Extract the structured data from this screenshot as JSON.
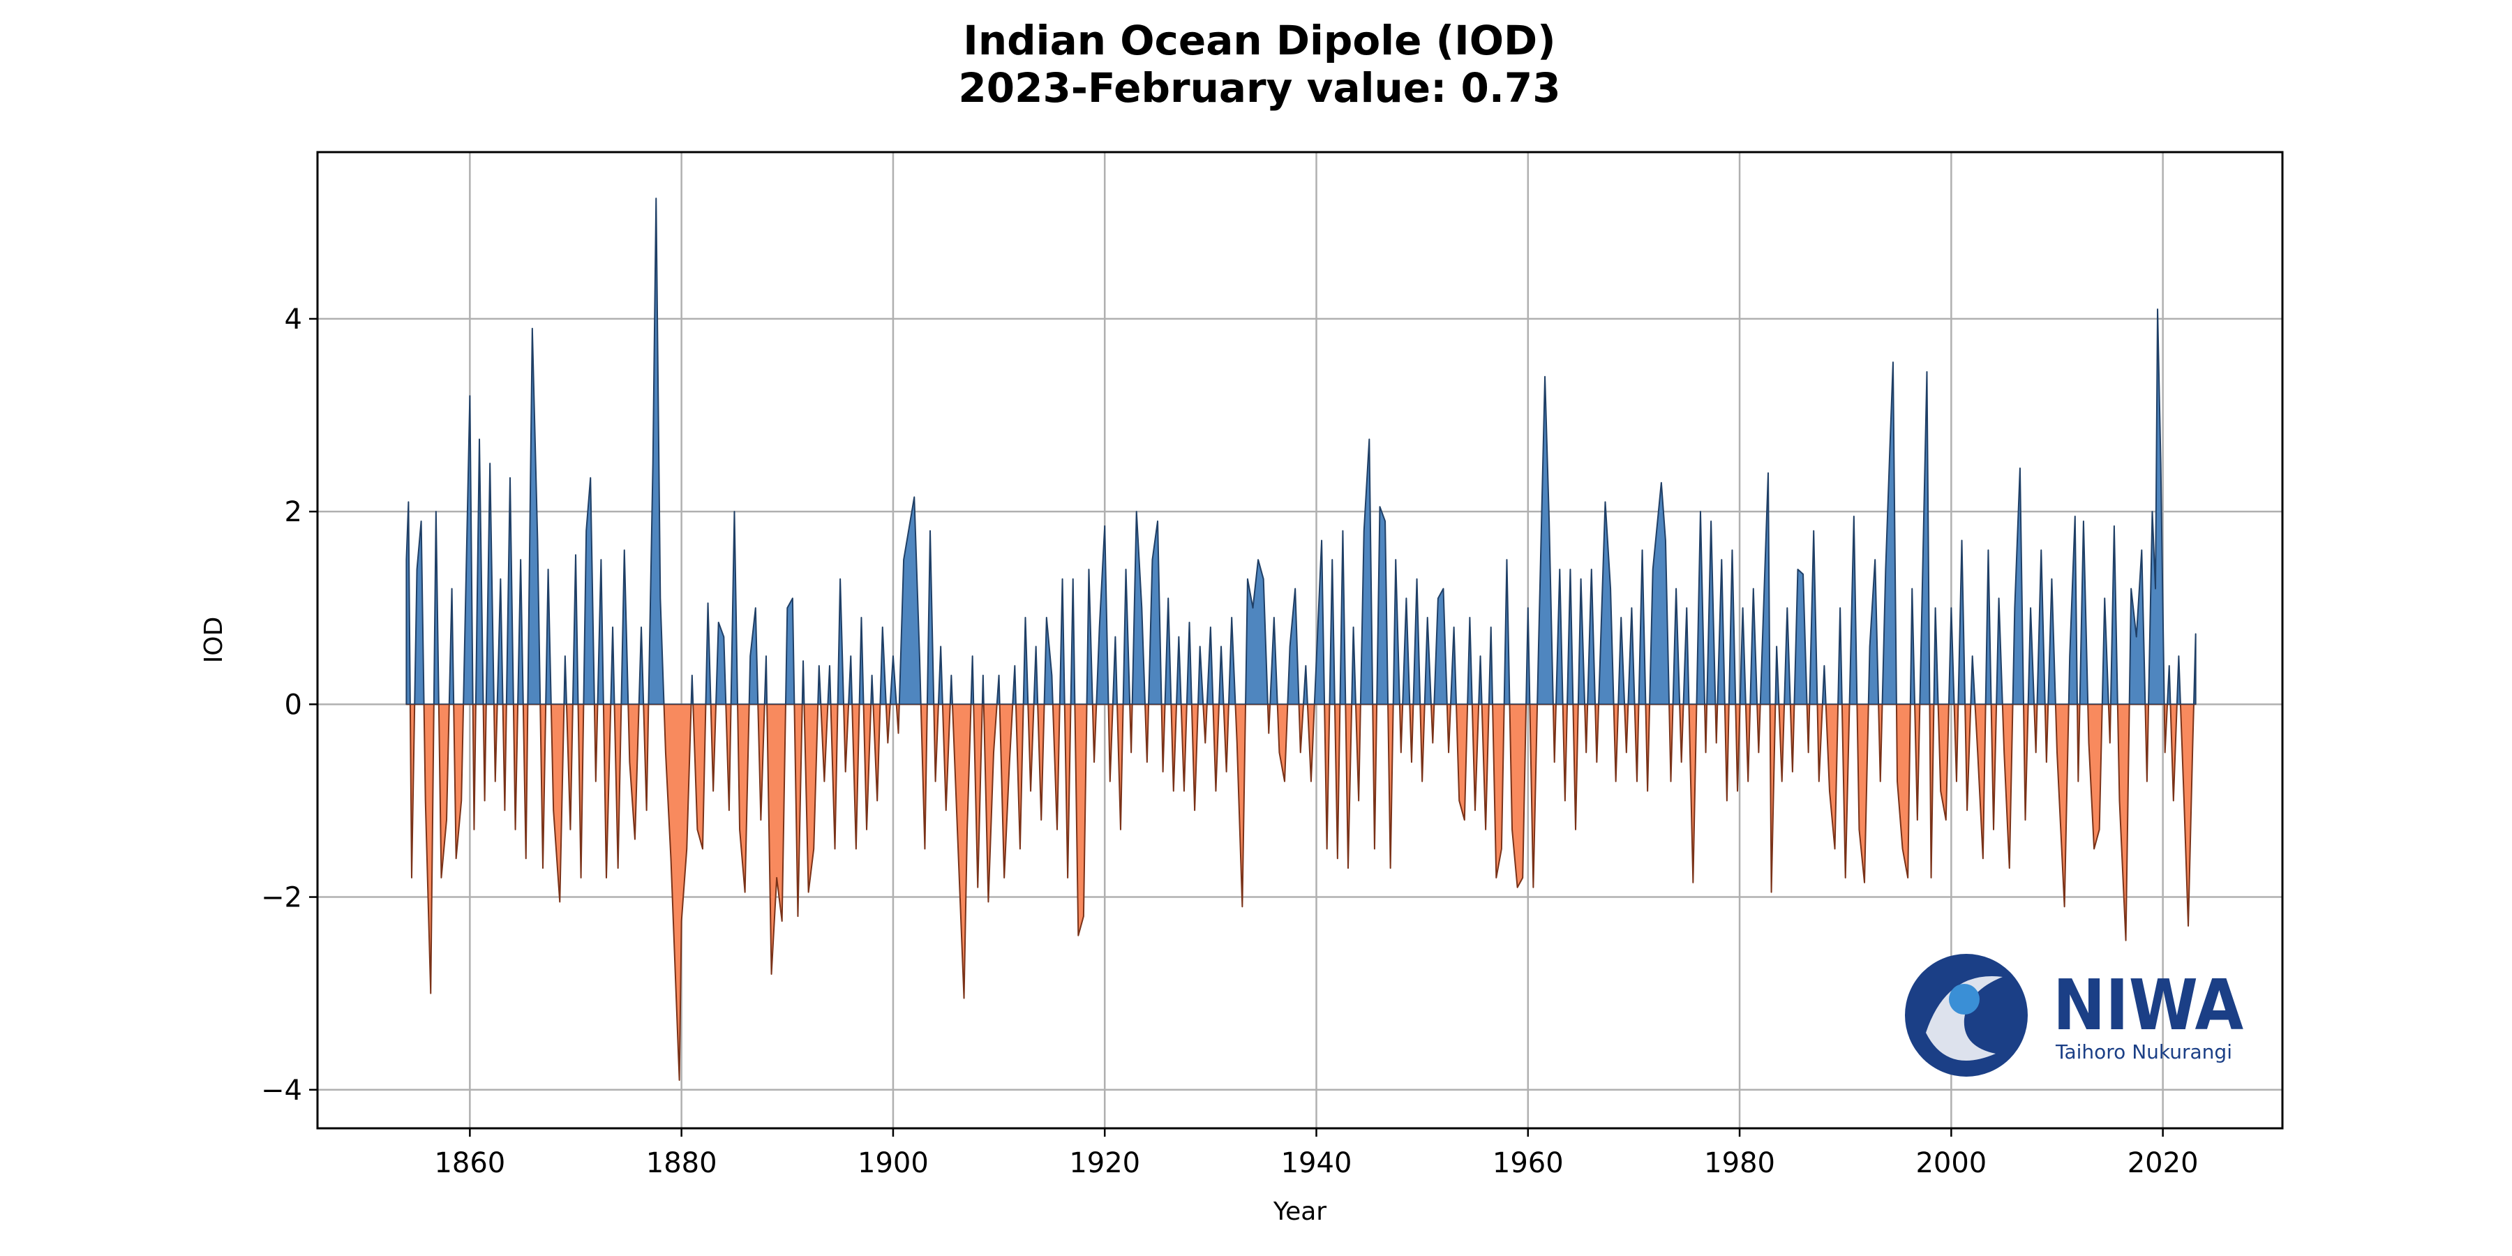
{
  "chart_data": {
    "type": "area",
    "title": "Indian Ocean Dipole (IOD)",
    "subtitle": "2023-February value: 0.73",
    "xlabel": "Year",
    "ylabel": "IOD",
    "positive_color": "#4f86bf",
    "positive_edge": "#1f3f66",
    "negative_color": "#f88a5e",
    "negative_edge": "#7a3218",
    "grid": true,
    "xlim": [
      1845.6,
      2031.3
    ],
    "ylim": [
      -4.4,
      5.73
    ],
    "xticks": [
      1860,
      1880,
      1900,
      1920,
      1940,
      1960,
      1980,
      2000,
      2020
    ],
    "yticks": [
      {
        "value": -4,
        "label": "−4"
      },
      {
        "value": -2,
        "label": "−2"
      },
      0,
      2,
      4
    ],
    "x": [
      1854.0,
      1854.2,
      1854.5,
      1855.0,
      1855.4,
      1855.8,
      1856.3,
      1856.8,
      1857.3,
      1857.8,
      1858.3,
      1858.7,
      1859.2,
      1860.0,
      1860.4,
      1860.9,
      1861.4,
      1861.9,
      1862.4,
      1862.9,
      1863.3,
      1863.8,
      1864.3,
      1864.8,
      1865.3,
      1865.9,
      1866.4,
      1866.9,
      1867.4,
      1867.9,
      1868.5,
      1869.0,
      1869.5,
      1870.0,
      1870.5,
      1871.0,
      1871.4,
      1871.9,
      1872.4,
      1872.9,
      1873.5,
      1874.0,
      1874.6,
      1875.1,
      1875.6,
      1876.2,
      1876.7,
      1877.3,
      1877.6,
      1878.0,
      1878.5,
      1879.0,
      1879.8,
      1880.0,
      1880.5,
      1881.0,
      1881.5,
      1882.0,
      1882.5,
      1883.0,
      1883.5,
      1884.0,
      1884.5,
      1885.0,
      1885.5,
      1886.0,
      1886.5,
      1887.0,
      1887.5,
      1888.0,
      1888.5,
      1889.0,
      1889.5,
      1890.0,
      1890.5,
      1891.0,
      1891.5,
      1892.0,
      1892.5,
      1893.0,
      1893.5,
      1894.0,
      1894.5,
      1895.0,
      1895.5,
      1896.0,
      1896.5,
      1897.0,
      1897.5,
      1898.0,
      1898.5,
      1899.0,
      1899.5,
      1900.0,
      1900.5,
      1901.0,
      1902.0,
      1902.5,
      1903.0,
      1903.5,
      1904.0,
      1904.5,
      1905.0,
      1905.5,
      1906.7,
      1907.0,
      1907.5,
      1908.0,
      1908.5,
      1909.0,
      1909.5,
      1910.0,
      1910.5,
      1911.0,
      1911.5,
      1912.0,
      1912.5,
      1913.0,
      1913.5,
      1914.0,
      1914.5,
      1915.0,
      1915.5,
      1916.0,
      1916.5,
      1917.0,
      1917.5,
      1918.0,
      1918.5,
      1919.0,
      1919.5,
      1920.0,
      1920.5,
      1921.0,
      1921.5,
      1922.0,
      1922.5,
      1923.0,
      1923.5,
      1924.0,
      1924.5,
      1925.0,
      1925.5,
      1926.0,
      1926.5,
      1927.0,
      1927.5,
      1928.0,
      1928.5,
      1929.0,
      1929.5,
      1930.0,
      1930.5,
      1931.0,
      1931.5,
      1932.0,
      1932.5,
      1933.0,
      1933.5,
      1934.0,
      1934.5,
      1935.0,
      1935.5,
      1936.0,
      1936.5,
      1937.0,
      1937.5,
      1938.0,
      1938.5,
      1939.0,
      1939.5,
      1940.5,
      1941.0,
      1941.5,
      1942.0,
      1942.5,
      1943.0,
      1943.5,
      1944.0,
      1944.5,
      1945.0,
      1945.5,
      1946.0,
      1946.5,
      1947.0,
      1947.5,
      1948.0,
      1948.5,
      1949.0,
      1949.5,
      1950.0,
      1950.5,
      1951.0,
      1951.5,
      1952.0,
      1952.5,
      1953.0,
      1953.5,
      1954.0,
      1954.5,
      1955.0,
      1955.5,
      1956.0,
      1956.5,
      1957.0,
      1957.5,
      1958.0,
      1958.5,
      1959.0,
      1959.5,
      1960.0,
      1960.5,
      1961.0,
      1961.6,
      1962.0,
      1962.5,
      1963.0,
      1963.5,
      1964.0,
      1964.5,
      1965.0,
      1965.5,
      1966.0,
      1966.5,
      1967.3,
      1967.8,
      1968.3,
      1968.8,
      1969.3,
      1969.8,
      1970.3,
      1970.8,
      1971.3,
      1971.8,
      1972.6,
      1973.0,
      1973.5,
      1974.0,
      1974.5,
      1975.0,
      1975.6,
      1976.3,
      1976.8,
      1977.3,
      1977.8,
      1978.3,
      1978.8,
      1979.3,
      1979.8,
      1980.3,
      1980.8,
      1981.3,
      1981.8,
      1982.7,
      1983.0,
      1983.5,
      1984.0,
      1984.5,
      1985.0,
      1985.5,
      1986.0,
      1986.5,
      1987.0,
      1987.5,
      1988.0,
      1988.5,
      1989.0,
      1989.5,
      1990.0,
      1990.8,
      1991.3,
      1991.8,
      1992.3,
      1992.8,
      1993.3,
      1993.8,
      1994.2,
      1994.5,
      1994.9,
      1995.4,
      1995.9,
      1996.3,
      1996.8,
      1997.7,
      1998.1,
      1998.5,
      1999.0,
      1999.5,
      2000.0,
      2000.5,
      2001.0,
      2001.5,
      2002.0,
      2002.5,
      2003.0,
      2003.5,
      2004.0,
      2004.5,
      2005.0,
      2005.5,
      2006.0,
      2006.5,
      2007.0,
      2007.5,
      2008.0,
      2008.5,
      2009.0,
      2009.5,
      2010.0,
      2010.7,
      2011.2,
      2011.7,
      2012.0,
      2012.5,
      2013.0,
      2013.5,
      2014.0,
      2014.5,
      2015.0,
      2015.4,
      2015.9,
      2016.5,
      2017.0,
      2017.5,
      2018.0,
      2018.5,
      2019.0,
      2019.3,
      2019.5,
      2019.8,
      2020.2,
      2020.6,
      2021.0,
      2021.5,
      2022.0,
      2022.4,
      2022.8,
      2023.1
    ],
    "values": [
      1.5,
      2.1,
      -1.8,
      1.4,
      1.9,
      -1.0,
      -3.0,
      2.0,
      -1.8,
      -1.2,
      1.2,
      -1.6,
      -1.0,
      3.2,
      -1.3,
      2.75,
      -1.0,
      2.5,
      -0.8,
      1.3,
      -1.1,
      2.35,
      -1.3,
      1.5,
      -1.6,
      3.9,
      1.7,
      -1.7,
      1.4,
      -1.1,
      -2.05,
      0.5,
      -1.3,
      1.55,
      -1.8,
      1.8,
      2.35,
      -0.8,
      1.5,
      -1.8,
      0.8,
      -1.7,
      1.6,
      -0.6,
      -1.4,
      0.8,
      -1.1,
      2.5,
      5.25,
      1.1,
      -0.5,
      -1.6,
      -3.9,
      -2.25,
      -1.5,
      0.3,
      -1.3,
      -1.5,
      1.05,
      -0.9,
      0.85,
      0.7,
      -1.1,
      2.0,
      -1.3,
      -1.95,
      0.5,
      1.0,
      -1.2,
      0.5,
      -2.8,
      -1.8,
      -2.25,
      1.0,
      1.1,
      -2.2,
      0.45,
      -1.95,
      -1.5,
      0.4,
      -0.8,
      0.4,
      -1.5,
      1.3,
      -0.7,
      0.5,
      -1.5,
      0.9,
      -1.3,
      0.3,
      -1.0,
      0.8,
      -0.4,
      0.5,
      -0.3,
      1.5,
      2.15,
      0.5,
      -1.5,
      1.8,
      -0.8,
      0.6,
      -1.1,
      0.3,
      -3.05,
      -1.3,
      0.5,
      -1.9,
      0.3,
      -2.05,
      -0.5,
      0.3,
      -1.8,
      -0.6,
      0.4,
      -1.5,
      0.9,
      -0.9,
      0.6,
      -1.2,
      0.9,
      0.3,
      -1.3,
      1.3,
      -1.8,
      1.3,
      -2.4,
      -2.2,
      1.4,
      -0.6,
      0.8,
      1.85,
      -0.8,
      0.7,
      -1.3,
      1.4,
      -0.5,
      2.0,
      1.0,
      -0.6,
      1.5,
      1.9,
      -0.7,
      1.1,
      -0.9,
      0.7,
      -0.9,
      0.85,
      -1.1,
      0.6,
      -0.4,
      0.8,
      -0.9,
      0.6,
      -0.7,
      0.9,
      -0.4,
      -2.1,
      1.3,
      1.0,
      1.5,
      1.3,
      -0.3,
      0.9,
      -0.5,
      -0.8,
      0.6,
      1.2,
      -0.5,
      0.4,
      -0.8,
      1.7,
      -1.5,
      1.5,
      -1.6,
      1.8,
      -1.7,
      0.8,
      -1.0,
      1.8,
      2.75,
      -1.5,
      2.05,
      1.9,
      -1.7,
      1.5,
      -0.5,
      1.1,
      -0.6,
      1.3,
      -0.8,
      0.9,
      -0.4,
      1.1,
      1.2,
      -0.5,
      0.8,
      -1.0,
      -1.2,
      0.9,
      -1.1,
      0.5,
      -1.3,
      0.8,
      -1.8,
      -1.5,
      1.5,
      -1.3,
      -1.9,
      -1.8,
      1.0,
      -1.9,
      0.6,
      3.4,
      1.9,
      -0.6,
      1.4,
      -1.0,
      1.4,
      -1.3,
      1.3,
      -0.5,
      1.4,
      -0.6,
      2.1,
      1.2,
      -0.8,
      0.9,
      -0.5,
      1.0,
      -0.8,
      1.6,
      -0.9,
      1.4,
      2.3,
      1.7,
      -0.8,
      1.2,
      -0.6,
      1.0,
      -1.85,
      2.0,
      -0.5,
      1.9,
      -0.4,
      1.5,
      -1.0,
      1.6,
      -0.9,
      1.0,
      -0.8,
      1.2,
      -0.5,
      2.4,
      -1.95,
      0.6,
      -0.8,
      1.0,
      -0.7,
      1.4,
      1.35,
      -0.5,
      1.8,
      -0.8,
      0.4,
      -0.9,
      -1.5,
      1.0,
      -1.8,
      1.95,
      -1.3,
      -1.85,
      0.6,
      1.5,
      -0.8,
      1.4,
      2.65,
      3.55,
      -0.8,
      -1.5,
      -1.8,
      1.2,
      -1.2,
      3.45,
      -1.8,
      1.0,
      -0.9,
      -1.2,
      1.0,
      -0.8,
      1.7,
      -1.1,
      0.5,
      -0.5,
      -1.6,
      1.6,
      -1.3,
      1.1,
      -0.5,
      -1.7,
      1.0,
      2.45,
      -1.2,
      1.0,
      -0.5,
      1.6,
      -0.6,
      1.3,
      -0.5,
      -2.1,
      0.5,
      1.95,
      -0.8,
      1.9,
      -0.4,
      -1.5,
      -1.3,
      1.1,
      -0.4,
      1.85,
      -1.0,
      -2.45,
      1.2,
      0.7,
      1.6,
      -0.8,
      2.0,
      1.2,
      4.1,
      2.5,
      -0.5,
      0.4,
      -1.0,
      0.5,
      -1.0,
      -2.3,
      -0.5,
      0.73
    ]
  },
  "logo": {
    "name": "NIWA",
    "tagline": "Taihoro Nukurangi"
  }
}
